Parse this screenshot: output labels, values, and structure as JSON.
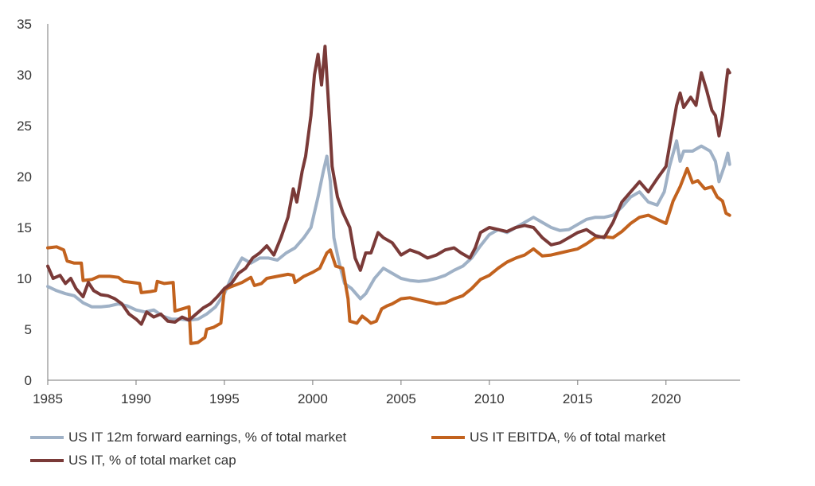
{
  "chart_data": {
    "type": "line",
    "title": "",
    "xlabel": "",
    "ylabel": "",
    "xlim": [
      1985,
      2023.75
    ],
    "ylim": [
      0,
      35
    ],
    "x_ticks": [
      1985,
      1990,
      1995,
      2000,
      2005,
      2010,
      2015,
      2020
    ],
    "y_ticks": [
      0,
      5,
      10,
      15,
      20,
      25,
      30,
      35
    ],
    "grid": false,
    "legend_position": "bottom",
    "series": [
      {
        "name": "US IT 12m forward earnings, % of total market",
        "color": "#9fb1c6",
        "points": [
          [
            1985.0,
            9.2
          ],
          [
            1985.5,
            8.8
          ],
          [
            1986.0,
            8.5
          ],
          [
            1986.5,
            8.3
          ],
          [
            1987.0,
            7.6
          ],
          [
            1987.5,
            7.2
          ],
          [
            1988.0,
            7.2
          ],
          [
            1988.5,
            7.3
          ],
          [
            1989.0,
            7.5
          ],
          [
            1989.5,
            7.3
          ],
          [
            1990.0,
            6.9
          ],
          [
            1990.5,
            6.7
          ],
          [
            1991.0,
            6.9
          ],
          [
            1991.5,
            6.3
          ],
          [
            1992.0,
            6.0
          ],
          [
            1992.5,
            6.0
          ],
          [
            1993.0,
            5.9
          ],
          [
            1993.5,
            6.0
          ],
          [
            1994.0,
            6.5
          ],
          [
            1994.5,
            7.2
          ],
          [
            1995.0,
            8.5
          ],
          [
            1995.5,
            10.5
          ],
          [
            1996.0,
            12.0
          ],
          [
            1996.5,
            11.5
          ],
          [
            1997.0,
            12.0
          ],
          [
            1997.5,
            12.0
          ],
          [
            1998.0,
            11.8
          ],
          [
            1998.5,
            12.5
          ],
          [
            1999.0,
            13.0
          ],
          [
            1999.5,
            14.0
          ],
          [
            1999.9,
            15.0
          ],
          [
            2000.3,
            18.0
          ],
          [
            2000.6,
            20.5
          ],
          [
            2000.8,
            22.0
          ],
          [
            2001.0,
            19.5
          ],
          [
            2001.2,
            14.0
          ],
          [
            2001.5,
            11.5
          ],
          [
            2001.8,
            9.5
          ],
          [
            2002.2,
            9.0
          ],
          [
            2002.7,
            8.0
          ],
          [
            2003.0,
            8.5
          ],
          [
            2003.5,
            10.0
          ],
          [
            2004.0,
            11.0
          ],
          [
            2004.5,
            10.5
          ],
          [
            2005.0,
            10.0
          ],
          [
            2005.5,
            9.8
          ],
          [
            2006.0,
            9.7
          ],
          [
            2006.5,
            9.8
          ],
          [
            2007.0,
            10.0
          ],
          [
            2007.5,
            10.3
          ],
          [
            2008.0,
            10.8
          ],
          [
            2008.5,
            11.2
          ],
          [
            2009.0,
            12.0
          ],
          [
            2009.5,
            13.2
          ],
          [
            2010.0,
            14.3
          ],
          [
            2010.5,
            14.8
          ],
          [
            2011.0,
            14.5
          ],
          [
            2011.5,
            15.0
          ],
          [
            2012.0,
            15.5
          ],
          [
            2012.5,
            16.0
          ],
          [
            2013.0,
            15.5
          ],
          [
            2013.5,
            15.0
          ],
          [
            2014.0,
            14.7
          ],
          [
            2014.5,
            14.8
          ],
          [
            2015.0,
            15.3
          ],
          [
            2015.5,
            15.8
          ],
          [
            2016.0,
            16.0
          ],
          [
            2016.5,
            16.0
          ],
          [
            2017.0,
            16.2
          ],
          [
            2017.5,
            17.0
          ],
          [
            2018.0,
            18.0
          ],
          [
            2018.5,
            18.5
          ],
          [
            2019.0,
            17.5
          ],
          [
            2019.5,
            17.2
          ],
          [
            2019.9,
            18.5
          ],
          [
            2020.2,
            21.0
          ],
          [
            2020.6,
            23.5
          ],
          [
            2020.8,
            21.5
          ],
          [
            2021.0,
            22.5
          ],
          [
            2021.5,
            22.5
          ],
          [
            2022.0,
            23.0
          ],
          [
            2022.5,
            22.5
          ],
          [
            2022.8,
            21.5
          ],
          [
            2023.0,
            19.5
          ],
          [
            2023.3,
            21.0
          ],
          [
            2023.5,
            22.3
          ],
          [
            2023.6,
            21.2
          ]
        ]
      },
      {
        "name": "US IT EBITDA, % of total market",
        "color": "#c2621e",
        "points": [
          [
            1985.0,
            13.0
          ],
          [
            1985.5,
            13.1
          ],
          [
            1985.9,
            12.8
          ],
          [
            1986.1,
            11.7
          ],
          [
            1986.5,
            11.5
          ],
          [
            1986.9,
            11.5
          ],
          [
            1987.0,
            9.8
          ],
          [
            1987.5,
            9.9
          ],
          [
            1987.9,
            10.2
          ],
          [
            1988.5,
            10.2
          ],
          [
            1989.0,
            10.1
          ],
          [
            1989.3,
            9.7
          ],
          [
            1989.8,
            9.6
          ],
          [
            1990.2,
            9.5
          ],
          [
            1990.3,
            8.6
          ],
          [
            1990.8,
            8.7
          ],
          [
            1991.1,
            8.8
          ],
          [
            1991.2,
            9.7
          ],
          [
            1991.6,
            9.5
          ],
          [
            1992.1,
            9.6
          ],
          [
            1992.2,
            6.8
          ],
          [
            1992.6,
            7.0
          ],
          [
            1993.0,
            7.2
          ],
          [
            1993.1,
            3.6
          ],
          [
            1993.5,
            3.7
          ],
          [
            1993.9,
            4.2
          ],
          [
            1994.0,
            5.0
          ],
          [
            1994.4,
            5.2
          ],
          [
            1994.8,
            5.6
          ],
          [
            1995.0,
            8.9
          ],
          [
            1995.4,
            9.2
          ],
          [
            1996.0,
            9.6
          ],
          [
            1996.5,
            10.1
          ],
          [
            1996.7,
            9.3
          ],
          [
            1997.1,
            9.5
          ],
          [
            1997.4,
            10.0
          ],
          [
            1998.0,
            10.2
          ],
          [
            1998.6,
            10.4
          ],
          [
            1998.9,
            10.3
          ],
          [
            1999.0,
            9.6
          ],
          [
            1999.5,
            10.2
          ],
          [
            2000.0,
            10.6
          ],
          [
            2000.4,
            11.0
          ],
          [
            2000.8,
            12.5
          ],
          [
            2001.0,
            12.8
          ],
          [
            2001.3,
            11.2
          ],
          [
            2001.7,
            11.0
          ],
          [
            2002.0,
            8.0
          ],
          [
            2002.1,
            5.8
          ],
          [
            2002.5,
            5.6
          ],
          [
            2002.8,
            6.3
          ],
          [
            2003.1,
            5.9
          ],
          [
            2003.3,
            5.6
          ],
          [
            2003.6,
            5.8
          ],
          [
            2003.9,
            7.0
          ],
          [
            2004.2,
            7.3
          ],
          [
            2004.5,
            7.5
          ],
          [
            2005.0,
            8.0
          ],
          [
            2005.5,
            8.1
          ],
          [
            2006.0,
            7.9
          ],
          [
            2006.5,
            7.7
          ],
          [
            2007.0,
            7.5
          ],
          [
            2007.5,
            7.6
          ],
          [
            2008.0,
            8.0
          ],
          [
            2008.5,
            8.3
          ],
          [
            2009.0,
            9.0
          ],
          [
            2009.5,
            9.9
          ],
          [
            2010.0,
            10.3
          ],
          [
            2010.5,
            11.0
          ],
          [
            2011.0,
            11.6
          ],
          [
            2011.5,
            12.0
          ],
          [
            2012.0,
            12.3
          ],
          [
            2012.5,
            12.9
          ],
          [
            2013.0,
            12.2
          ],
          [
            2013.5,
            12.3
          ],
          [
            2014.0,
            12.5
          ],
          [
            2014.5,
            12.7
          ],
          [
            2015.0,
            12.9
          ],
          [
            2015.5,
            13.4
          ],
          [
            2016.0,
            14.0
          ],
          [
            2016.5,
            14.1
          ],
          [
            2017.0,
            14.0
          ],
          [
            2017.5,
            14.6
          ],
          [
            2018.0,
            15.4
          ],
          [
            2018.5,
            16.0
          ],
          [
            2019.0,
            16.2
          ],
          [
            2019.5,
            15.8
          ],
          [
            2020.0,
            15.4
          ],
          [
            2020.4,
            17.6
          ],
          [
            2020.8,
            19.0
          ],
          [
            2021.2,
            20.8
          ],
          [
            2021.5,
            19.4
          ],
          [
            2021.8,
            19.6
          ],
          [
            2022.2,
            18.8
          ],
          [
            2022.6,
            19.0
          ],
          [
            2022.9,
            18.0
          ],
          [
            2023.2,
            17.6
          ],
          [
            2023.4,
            16.4
          ],
          [
            2023.6,
            16.2
          ]
        ]
      },
      {
        "name": "US IT, % of total market cap",
        "color": "#7a3a38",
        "points": [
          [
            1985.0,
            11.2
          ],
          [
            1985.3,
            10.0
          ],
          [
            1985.7,
            10.3
          ],
          [
            1986.0,
            9.5
          ],
          [
            1986.3,
            10.0
          ],
          [
            1986.6,
            9.0
          ],
          [
            1987.0,
            8.2
          ],
          [
            1987.3,
            9.6
          ],
          [
            1987.6,
            8.8
          ],
          [
            1988.0,
            8.4
          ],
          [
            1988.4,
            8.3
          ],
          [
            1988.8,
            8.0
          ],
          [
            1989.2,
            7.5
          ],
          [
            1989.6,
            6.5
          ],
          [
            1990.0,
            6.0
          ],
          [
            1990.3,
            5.5
          ],
          [
            1990.6,
            6.7
          ],
          [
            1991.0,
            6.2
          ],
          [
            1991.4,
            6.5
          ],
          [
            1991.8,
            5.8
          ],
          [
            1992.2,
            5.7
          ],
          [
            1992.6,
            6.2
          ],
          [
            1993.0,
            5.9
          ],
          [
            1993.4,
            6.5
          ],
          [
            1993.8,
            7.1
          ],
          [
            1994.2,
            7.5
          ],
          [
            1994.6,
            8.2
          ],
          [
            1995.0,
            9.0
          ],
          [
            1995.4,
            9.5
          ],
          [
            1995.8,
            10.5
          ],
          [
            1996.2,
            11.0
          ],
          [
            1996.6,
            12.0
          ],
          [
            1997.0,
            12.5
          ],
          [
            1997.4,
            13.2
          ],
          [
            1997.8,
            12.3
          ],
          [
            1998.2,
            14.0
          ],
          [
            1998.6,
            16.0
          ],
          [
            1998.9,
            18.8
          ],
          [
            1999.1,
            17.5
          ],
          [
            1999.4,
            20.5
          ],
          [
            1999.6,
            22.0
          ],
          [
            1999.9,
            26.0
          ],
          [
            2000.1,
            30.0
          ],
          [
            2000.3,
            32.0
          ],
          [
            2000.5,
            29.0
          ],
          [
            2000.7,
            32.8
          ],
          [
            2000.9,
            27.0
          ],
          [
            2001.1,
            21.0
          ],
          [
            2001.4,
            18.0
          ],
          [
            2001.7,
            16.5
          ],
          [
            2002.1,
            15.0
          ],
          [
            2002.4,
            12.0
          ],
          [
            2002.7,
            10.8
          ],
          [
            2003.0,
            12.5
          ],
          [
            2003.3,
            12.5
          ],
          [
            2003.7,
            14.5
          ],
          [
            2004.0,
            14.0
          ],
          [
            2004.5,
            13.5
          ],
          [
            2005.0,
            12.3
          ],
          [
            2005.5,
            12.8
          ],
          [
            2006.0,
            12.5
          ],
          [
            2006.5,
            12.0
          ],
          [
            2007.0,
            12.3
          ],
          [
            2007.5,
            12.8
          ],
          [
            2008.0,
            13.0
          ],
          [
            2008.4,
            12.5
          ],
          [
            2008.9,
            12.0
          ],
          [
            2009.2,
            13.0
          ],
          [
            2009.5,
            14.5
          ],
          [
            2010.0,
            15.0
          ],
          [
            2010.5,
            14.8
          ],
          [
            2011.0,
            14.6
          ],
          [
            2011.5,
            15.0
          ],
          [
            2012.0,
            15.2
          ],
          [
            2012.5,
            15.0
          ],
          [
            2013.0,
            14.0
          ],
          [
            2013.5,
            13.3
          ],
          [
            2014.0,
            13.5
          ],
          [
            2014.5,
            14.0
          ],
          [
            2015.0,
            14.5
          ],
          [
            2015.5,
            14.8
          ],
          [
            2016.0,
            14.2
          ],
          [
            2016.5,
            14.0
          ],
          [
            2017.0,
            15.5
          ],
          [
            2017.5,
            17.5
          ],
          [
            2018.0,
            18.5
          ],
          [
            2018.5,
            19.5
          ],
          [
            2019.0,
            18.5
          ],
          [
            2019.5,
            19.8
          ],
          [
            2020.0,
            21.0
          ],
          [
            2020.3,
            24.0
          ],
          [
            2020.6,
            27.0
          ],
          [
            2020.8,
            28.2
          ],
          [
            2021.0,
            26.8
          ],
          [
            2021.4,
            27.8
          ],
          [
            2021.7,
            27.0
          ],
          [
            2022.0,
            30.2
          ],
          [
            2022.3,
            28.5
          ],
          [
            2022.6,
            26.5
          ],
          [
            2022.8,
            26.0
          ],
          [
            2023.0,
            24.0
          ],
          [
            2023.2,
            26.0
          ],
          [
            2023.4,
            29.0
          ],
          [
            2023.5,
            30.5
          ],
          [
            2023.6,
            30.2
          ]
        ]
      }
    ]
  }
}
